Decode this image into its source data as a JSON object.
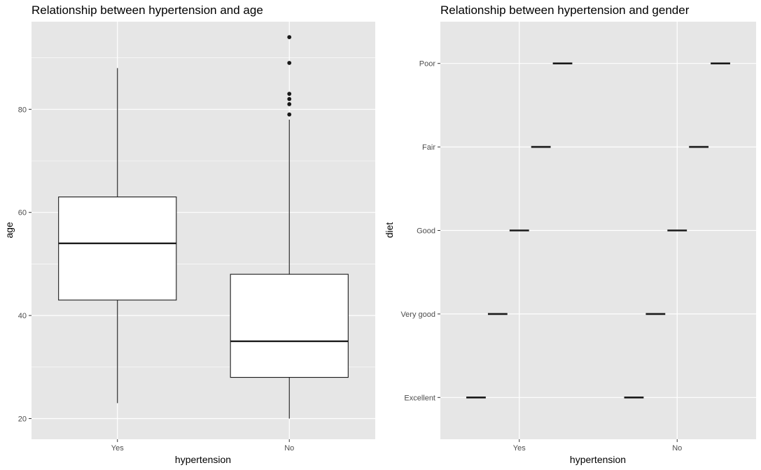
{
  "chart_data": [
    {
      "type": "boxplot",
      "title": "Relationship between hypertension and age",
      "xlabel": "hypertension",
      "ylabel": "age",
      "categories": [
        "Yes",
        "No"
      ],
      "ylim": [
        16,
        97
      ],
      "yticks": [
        20,
        40,
        60,
        80
      ],
      "boxes": [
        {
          "category": "Yes",
          "min": 23,
          "q1": 43,
          "median": 54,
          "q3": 63,
          "max": 88,
          "outliers": []
        },
        {
          "category": "No",
          "min": 20,
          "q1": 28,
          "median": 35,
          "q3": 48,
          "max": 78,
          "outliers": [
            79,
            81,
            82,
            83,
            89,
            94
          ]
        }
      ],
      "grid": true,
      "colors": {
        "panel": "#e6e6e6",
        "grid": "#ffffff",
        "box_fill": "#ffffff",
        "stroke": "#1a1a1a"
      }
    },
    {
      "type": "boxplot",
      "title": "Relationship between hypertension and gender",
      "xlabel": "hypertension",
      "ylabel": "diet",
      "categories": [
        "Yes",
        "No"
      ],
      "y_categories": [
        "Excellent",
        "Very good",
        "Good",
        "Fair",
        "Poor"
      ],
      "groups": [
        {
          "category": "Yes",
          "levels": [
            "Excellent",
            "Very good",
            "Good",
            "Fair",
            "Poor"
          ]
        },
        {
          "category": "No",
          "levels": [
            "Excellent",
            "Very good",
            "Good",
            "Fair",
            "Poor"
          ]
        }
      ],
      "grid": true,
      "colors": {
        "panel": "#e6e6e6",
        "grid": "#ffffff",
        "stroke": "#1a1a1a"
      }
    }
  ]
}
